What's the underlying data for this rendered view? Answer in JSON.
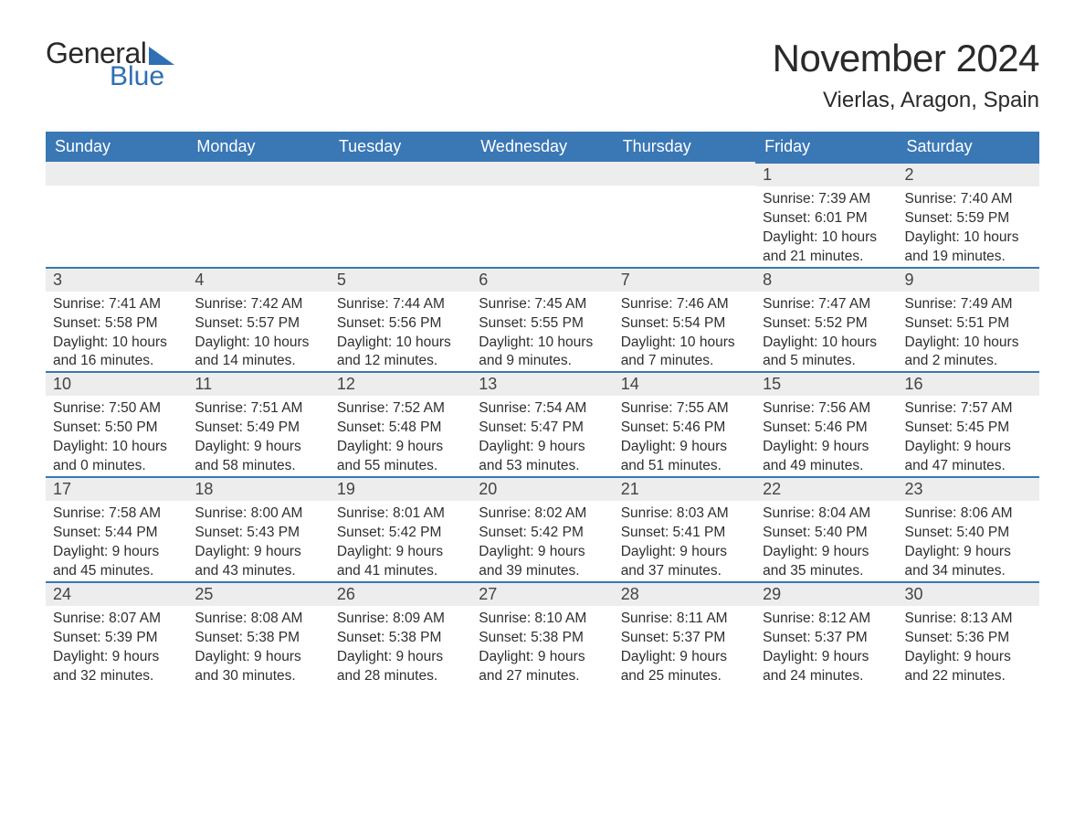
{
  "logo": {
    "text_general": "General",
    "text_blue": "Blue",
    "triangle_color": "#2f6fb3"
  },
  "title": {
    "month": "November 2024",
    "location": "Vierlas, Aragon, Spain"
  },
  "styling": {
    "header_bg": "#3a77b5",
    "header_text_color": "#ffffff",
    "header_fontsize": 18,
    "day_num_bg": "#ededed",
    "day_num_border_top": "#3a77b5",
    "day_num_color": "#444444",
    "day_num_fontsize": 18,
    "info_color": "#2f2f2f",
    "info_fontsize": 15.5,
    "title_fontsize": 42,
    "location_fontsize": 24,
    "background": "#ffffff"
  },
  "weekdays": [
    "Sunday",
    "Monday",
    "Tuesday",
    "Wednesday",
    "Thursday",
    "Friday",
    "Saturday"
  ],
  "weeks": [
    [
      null,
      null,
      null,
      null,
      null,
      {
        "num": "1",
        "sunrise": "7:39 AM",
        "sunset": "6:01 PM",
        "daylight": "10 hours and 21 minutes."
      },
      {
        "num": "2",
        "sunrise": "7:40 AM",
        "sunset": "5:59 PM",
        "daylight": "10 hours and 19 minutes."
      }
    ],
    [
      {
        "num": "3",
        "sunrise": "7:41 AM",
        "sunset": "5:58 PM",
        "daylight": "10 hours and 16 minutes."
      },
      {
        "num": "4",
        "sunrise": "7:42 AM",
        "sunset": "5:57 PM",
        "daylight": "10 hours and 14 minutes."
      },
      {
        "num": "5",
        "sunrise": "7:44 AM",
        "sunset": "5:56 PM",
        "daylight": "10 hours and 12 minutes."
      },
      {
        "num": "6",
        "sunrise": "7:45 AM",
        "sunset": "5:55 PM",
        "daylight": "10 hours and 9 minutes."
      },
      {
        "num": "7",
        "sunrise": "7:46 AM",
        "sunset": "5:54 PM",
        "daylight": "10 hours and 7 minutes."
      },
      {
        "num": "8",
        "sunrise": "7:47 AM",
        "sunset": "5:52 PM",
        "daylight": "10 hours and 5 minutes."
      },
      {
        "num": "9",
        "sunrise": "7:49 AM",
        "sunset": "5:51 PM",
        "daylight": "10 hours and 2 minutes."
      }
    ],
    [
      {
        "num": "10",
        "sunrise": "7:50 AM",
        "sunset": "5:50 PM",
        "daylight": "10 hours and 0 minutes."
      },
      {
        "num": "11",
        "sunrise": "7:51 AM",
        "sunset": "5:49 PM",
        "daylight": "9 hours and 58 minutes."
      },
      {
        "num": "12",
        "sunrise": "7:52 AM",
        "sunset": "5:48 PM",
        "daylight": "9 hours and 55 minutes."
      },
      {
        "num": "13",
        "sunrise": "7:54 AM",
        "sunset": "5:47 PM",
        "daylight": "9 hours and 53 minutes."
      },
      {
        "num": "14",
        "sunrise": "7:55 AM",
        "sunset": "5:46 PM",
        "daylight": "9 hours and 51 minutes."
      },
      {
        "num": "15",
        "sunrise": "7:56 AM",
        "sunset": "5:46 PM",
        "daylight": "9 hours and 49 minutes."
      },
      {
        "num": "16",
        "sunrise": "7:57 AM",
        "sunset": "5:45 PM",
        "daylight": "9 hours and 47 minutes."
      }
    ],
    [
      {
        "num": "17",
        "sunrise": "7:58 AM",
        "sunset": "5:44 PM",
        "daylight": "9 hours and 45 minutes."
      },
      {
        "num": "18",
        "sunrise": "8:00 AM",
        "sunset": "5:43 PM",
        "daylight": "9 hours and 43 minutes."
      },
      {
        "num": "19",
        "sunrise": "8:01 AM",
        "sunset": "5:42 PM",
        "daylight": "9 hours and 41 minutes."
      },
      {
        "num": "20",
        "sunrise": "8:02 AM",
        "sunset": "5:42 PM",
        "daylight": "9 hours and 39 minutes."
      },
      {
        "num": "21",
        "sunrise": "8:03 AM",
        "sunset": "5:41 PM",
        "daylight": "9 hours and 37 minutes."
      },
      {
        "num": "22",
        "sunrise": "8:04 AM",
        "sunset": "5:40 PM",
        "daylight": "9 hours and 35 minutes."
      },
      {
        "num": "23",
        "sunrise": "8:06 AM",
        "sunset": "5:40 PM",
        "daylight": "9 hours and 34 minutes."
      }
    ],
    [
      {
        "num": "24",
        "sunrise": "8:07 AM",
        "sunset": "5:39 PM",
        "daylight": "9 hours and 32 minutes."
      },
      {
        "num": "25",
        "sunrise": "8:08 AM",
        "sunset": "5:38 PM",
        "daylight": "9 hours and 30 minutes."
      },
      {
        "num": "26",
        "sunrise": "8:09 AM",
        "sunset": "5:38 PM",
        "daylight": "9 hours and 28 minutes."
      },
      {
        "num": "27",
        "sunrise": "8:10 AM",
        "sunset": "5:38 PM",
        "daylight": "9 hours and 27 minutes."
      },
      {
        "num": "28",
        "sunrise": "8:11 AM",
        "sunset": "5:37 PM",
        "daylight": "9 hours and 25 minutes."
      },
      {
        "num": "29",
        "sunrise": "8:12 AM",
        "sunset": "5:37 PM",
        "daylight": "9 hours and 24 minutes."
      },
      {
        "num": "30",
        "sunrise": "8:13 AM",
        "sunset": "5:36 PM",
        "daylight": "9 hours and 22 minutes."
      }
    ]
  ],
  "labels": {
    "sunrise": "Sunrise:",
    "sunset": "Sunset:",
    "daylight": "Daylight:"
  }
}
